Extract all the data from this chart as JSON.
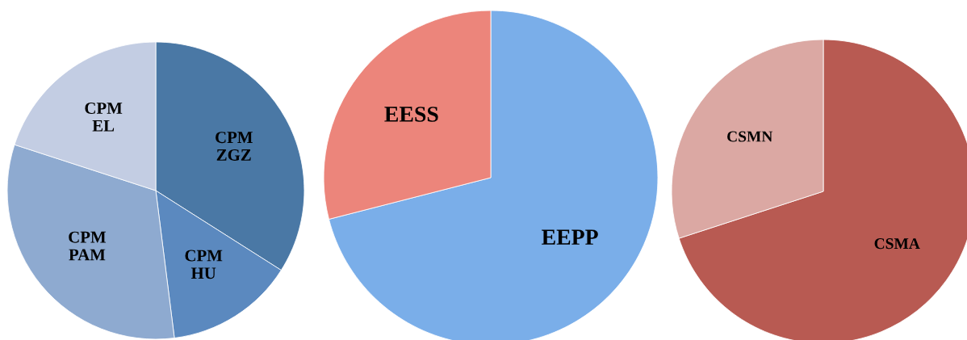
{
  "chart_data": [
    {
      "type": "pie",
      "categories": [
        "CPM ZGZ",
        "CPM HU",
        "CPM PAM",
        "CPM EL"
      ],
      "values": [
        34,
        14,
        32,
        20
      ],
      "colors": [
        "#4a78a5",
        "#5b89bf",
        "#8eaad0",
        "#c3cde3"
      ]
    },
    {
      "type": "pie",
      "categories": [
        "EEPP",
        "EESS"
      ],
      "values": [
        71,
        29
      ],
      "colors": [
        "#7aaee9",
        "#ec857b"
      ]
    },
    {
      "type": "pie",
      "categories": [
        "CSMA",
        "CSMN"
      ],
      "values": [
        70,
        30
      ],
      "colors": [
        "#b85a52",
        "#dba8a3"
      ]
    }
  ]
}
